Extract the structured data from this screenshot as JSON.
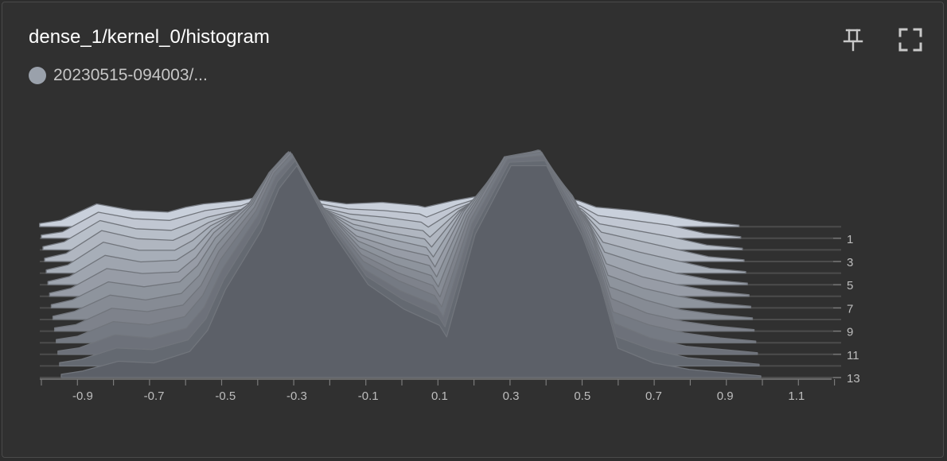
{
  "card": {
    "title": "dense_1/kernel_0/histogram",
    "legend_label": "20230515-094003/...",
    "pin_icon": "pin-icon",
    "fullscreen_icon": "fullscreen-icon"
  },
  "chart_data": {
    "type": "area",
    "subtype": "histogram-offset",
    "x_ticks": [
      "-0.9",
      "-0.7",
      "-0.5",
      "-0.3",
      "-0.1",
      "0.1",
      "0.3",
      "0.5",
      "0.7",
      "0.9",
      "1.1"
    ],
    "x_range": [
      -0.96,
      1.0
    ],
    "y_ticks": [
      "1",
      "3",
      "5",
      "7",
      "9",
      "11",
      "13"
    ],
    "steps": [
      0,
      1,
      2,
      3,
      4,
      5,
      6,
      7,
      8,
      9,
      10,
      11,
      12,
      13
    ],
    "colors": {
      "front": "#5c6068",
      "back": "#c9d0db",
      "stroke": "#71757c",
      "baseline": "#4c4c4c",
      "axis": "#7a7a7a"
    },
    "x": [
      -0.96,
      -0.9,
      -0.8,
      -0.7,
      -0.6,
      -0.55,
      -0.5,
      -0.4,
      -0.35,
      -0.3,
      -0.2,
      -0.1,
      0,
      0.1,
      0.12,
      0.2,
      0.3,
      0.4,
      0.5,
      0.55,
      0.6,
      0.7,
      0.8,
      0.9,
      0.95,
      1.0
    ],
    "series": [
      {
        "step": 0,
        "values": [
          0.2,
          0.4,
          1.4,
          1.0,
          0.9,
          1.2,
          1.4,
          1.6,
          1.8,
          2.1,
          1.7,
          1.4,
          1.5,
          1.3,
          1.2,
          1.6,
          2.0,
          2.3,
          1.8,
          1.6,
          1.2,
          1.0,
          0.7,
          0.3,
          0.2,
          0.1
        ]
      },
      {
        "step": 1,
        "values": [
          0.2,
          0.4,
          1.6,
          1.2,
          1.1,
          1.4,
          1.7,
          2.0,
          2.4,
          3.0,
          2.2,
          1.8,
          1.7,
          1.5,
          1.3,
          2.0,
          2.7,
          3.2,
          2.4,
          2.0,
          1.4,
          1.1,
          0.8,
          0.3,
          0.2,
          0.1
        ]
      },
      {
        "step": 2,
        "values": [
          0.2,
          0.5,
          1.8,
          1.3,
          1.2,
          1.6,
          2.0,
          2.5,
          3.2,
          4.0,
          2.7,
          2.2,
          2.0,
          1.7,
          1.4,
          2.5,
          3.5,
          4.2,
          3.0,
          2.5,
          1.6,
          1.2,
          0.8,
          0.3,
          0.2,
          0.1
        ]
      },
      {
        "step": 3,
        "values": [
          0.2,
          0.5,
          1.9,
          1.4,
          1.3,
          1.8,
          2.4,
          3.2,
          4.2,
          5.1,
          3.4,
          2.6,
          2.2,
          1.9,
          1.5,
          3.1,
          4.5,
          5.3,
          3.8,
          3.0,
          1.8,
          1.3,
          0.8,
          0.3,
          0.2,
          0.1
        ]
      },
      {
        "step": 4,
        "values": [
          0.2,
          0.5,
          1.9,
          1.4,
          1.4,
          2.0,
          2.9,
          4.0,
          5.3,
          6.2,
          4.1,
          3.0,
          2.5,
          2.1,
          1.6,
          3.8,
          5.6,
          6.4,
          4.6,
          3.5,
          1.9,
          1.3,
          0.8,
          0.3,
          0.2,
          0.1
        ]
      },
      {
        "step": 5,
        "values": [
          0.2,
          0.5,
          1.8,
          1.4,
          1.5,
          2.2,
          3.4,
          4.9,
          6.4,
          7.3,
          4.8,
          3.4,
          2.8,
          2.3,
          1.7,
          4.5,
          6.8,
          7.6,
          5.4,
          4.0,
          2.0,
          1.3,
          0.7,
          0.3,
          0.2,
          0.1
        ]
      },
      {
        "step": 6,
        "values": [
          0.2,
          0.5,
          1.7,
          1.4,
          1.5,
          2.4,
          3.9,
          5.7,
          7.4,
          8.4,
          5.5,
          3.7,
          3.0,
          2.5,
          1.8,
          5.2,
          7.9,
          8.6,
          6.2,
          4.5,
          2.0,
          1.2,
          0.7,
          0.3,
          0.2,
          0.1
        ]
      },
      {
        "step": 7,
        "values": [
          0.2,
          0.5,
          1.6,
          1.3,
          1.6,
          2.6,
          4.3,
          6.4,
          8.3,
          9.5,
          6.1,
          4.1,
          3.2,
          2.6,
          1.9,
          5.8,
          8.9,
          9.6,
          6.9,
          4.9,
          2.0,
          1.2,
          0.7,
          0.3,
          0.2,
          0.1
        ]
      },
      {
        "step": 8,
        "values": [
          0.2,
          0.5,
          1.5,
          1.2,
          1.6,
          2.7,
          4.6,
          7.1,
          9.1,
          10.3,
          6.8,
          4.4,
          3.4,
          2.7,
          2.0,
          6.4,
          9.8,
          10.4,
          7.4,
          5.2,
          2.0,
          1.2,
          0.6,
          0.3,
          0.2,
          0.1
        ]
      },
      {
        "step": 9,
        "values": [
          0.2,
          0.4,
          1.4,
          1.2,
          1.6,
          2.8,
          4.9,
          7.6,
          9.8,
          11.0,
          7.3,
          4.7,
          3.6,
          2.8,
          2.1,
          7.0,
          10.7,
          11.1,
          7.8,
          5.4,
          2.0,
          1.1,
          0.6,
          0.3,
          0.2,
          0.1
        ]
      },
      {
        "step": 10,
        "values": [
          0.2,
          0.4,
          1.3,
          1.1,
          1.6,
          2.9,
          5.1,
          8.1,
          10.4,
          11.6,
          7.8,
          5.0,
          3.8,
          2.9,
          2.2,
          7.5,
          11.4,
          11.7,
          8.1,
          5.5,
          1.9,
          1.1,
          0.6,
          0.3,
          0.2,
          0.1
        ]
      },
      {
        "step": 11,
        "values": [
          0.2,
          0.4,
          1.2,
          1.0,
          1.6,
          2.9,
          5.2,
          8.5,
          10.9,
          12.1,
          8.2,
          5.2,
          3.9,
          3.0,
          2.3,
          8.0,
          12.0,
          12.2,
          8.3,
          5.6,
          1.9,
          1.0,
          0.5,
          0.3,
          0.2,
          0.1
        ]
      },
      {
        "step": 12,
        "values": [
          0.2,
          0.4,
          1.1,
          1.0,
          1.6,
          2.9,
          5.3,
          8.8,
          11.3,
          12.6,
          8.6,
          5.5,
          4.1,
          3.1,
          2.4,
          8.4,
          12.5,
          12.6,
          8.5,
          5.7,
          1.8,
          1.0,
          0.5,
          0.3,
          0.2,
          0.1
        ]
      },
      {
        "step": 13,
        "values": [
          0.2,
          0.4,
          1.0,
          0.9,
          1.6,
          2.9,
          5.4,
          9.0,
          11.6,
          13.0,
          8.9,
          5.7,
          4.2,
          3.2,
          2.5,
          8.8,
          13.0,
          13.0,
          8.7,
          5.8,
          1.8,
          0.9,
          0.5,
          0.3,
          0.2,
          0.1
        ]
      }
    ]
  }
}
